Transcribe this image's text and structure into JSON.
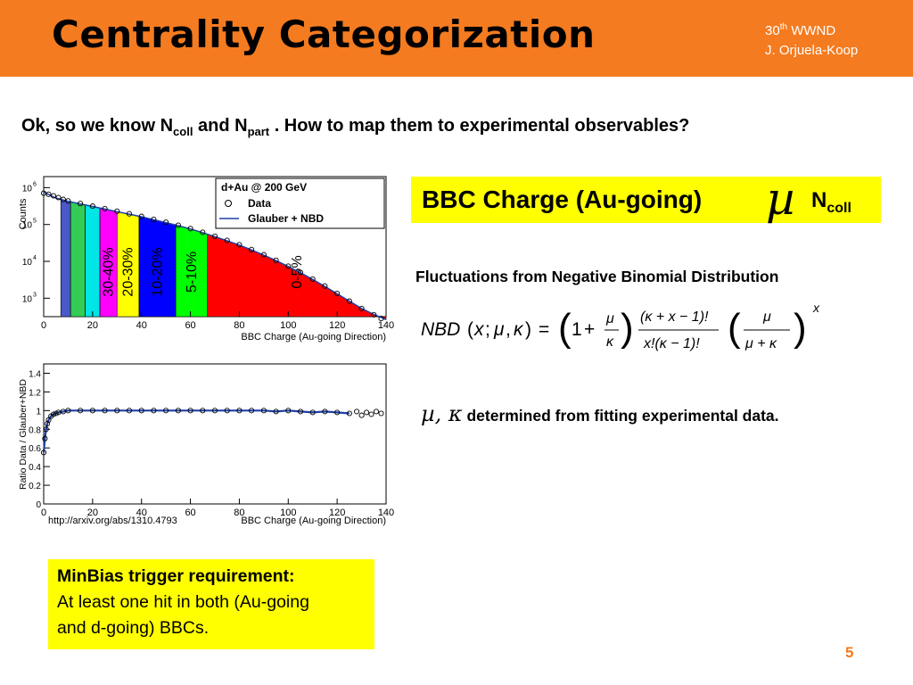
{
  "slide": {
    "title": "Centrality Categorization",
    "header_conf_num": "30",
    "header_conf_sup": "th",
    "header_conf_name": "WWND",
    "header_author": "J. Orjuela-Koop",
    "question_a": "Ok, so we know N",
    "question_sub1": "coll",
    "question_b": " and  N",
    "question_sub2": "part",
    "question_c": " . How to map them to experimental observables?",
    "bbc_label": "BBC Charge (Au-going)",
    "bbc_symbol": "µ",
    "bbc_n": "N",
    "bbc_n_sub": "coll",
    "fluct_text": "Fluctuations from Negative Binomial Distribution",
    "det_symbols": "µ, κ",
    "det_text": " determined from fitting experimental data.",
    "url": "http://arxiv.org/abs/1310.4793",
    "minbias_title": "MinBias trigger requirement:",
    "minbias_line1": "At least one hit in both (Au-going",
    "minbias_line2": "and d-going) BBCs.",
    "page_number": "5"
  },
  "chart_data": [
    {
      "type": "scatter",
      "title": "d+Au @ 200 GeV",
      "xlabel": "BBC Charge (Au-going Direction)",
      "ylabel": "Counts",
      "xlim": [
        0,
        140
      ],
      "ylim_log10": [
        2.5,
        6.3
      ],
      "log_y": true,
      "x_ticks": [
        "0",
        "20",
        "40",
        "60",
        "80",
        "100",
        "120",
        "140"
      ],
      "y_ticks": [
        "10",
        "10",
        "10",
        "10"
      ],
      "y_tick_exps": [
        "3",
        "4",
        "5",
        "6"
      ],
      "legend": [
        "Data",
        "Glauber + NBD"
      ],
      "legend_position": "top-right",
      "centrality_bins": [
        {
          "label": "",
          "x0": 7,
          "x1": 11,
          "color": "#4a58c8"
        },
        {
          "label": "",
          "x0": 11,
          "x1": 17,
          "color": "#33cc55"
        },
        {
          "label": "",
          "x0": 17,
          "x1": 23,
          "color": "#00e5e5"
        },
        {
          "label": "30-40%",
          "x0": 23,
          "x1": 30,
          "color": "#ff00ff"
        },
        {
          "label": "20-30%",
          "x0": 30,
          "x1": 39,
          "color": "#ffff00"
        },
        {
          "label": "10-20%",
          "x0": 39,
          "x1": 54,
          "color": "#0000ff"
        },
        {
          "label": "5-10%",
          "x0": 54,
          "x1": 67,
          "color": "#00ff00"
        },
        {
          "label": "0-5%",
          "x0": 67,
          "x1": 140,
          "color": "#ff0000"
        }
      ],
      "series": [
        {
          "name": "Data",
          "x": [
            0,
            2,
            4,
            6,
            8,
            10,
            15,
            20,
            25,
            30,
            35,
            40,
            45,
            50,
            55,
            60,
            65,
            70,
            75,
            80,
            85,
            90,
            95,
            100,
            105,
            110,
            115,
            120,
            125,
            130,
            135,
            138
          ],
          "log10_y": [
            5.85,
            5.82,
            5.78,
            5.73,
            5.68,
            5.64,
            5.57,
            5.5,
            5.43,
            5.36,
            5.29,
            5.22,
            5.14,
            5.06,
            4.98,
            4.89,
            4.79,
            4.68,
            4.57,
            4.45,
            4.32,
            4.18,
            4.03,
            3.87,
            3.7,
            3.52,
            3.33,
            3.13,
            2.92,
            2.72,
            2.55,
            2.45
          ]
        },
        {
          "name": "Glauber + NBD",
          "x": [
            0,
            5,
            10,
            15,
            20,
            25,
            30,
            35,
            40,
            45,
            50,
            55,
            60,
            65,
            70,
            75,
            80,
            85,
            90,
            95,
            100,
            105,
            110,
            115,
            120,
            125,
            130,
            135,
            140
          ],
          "log10_y": [
            5.88,
            5.72,
            5.63,
            5.56,
            5.49,
            5.42,
            5.35,
            5.28,
            5.21,
            5.13,
            5.05,
            4.97,
            4.88,
            4.78,
            4.67,
            4.56,
            4.44,
            4.31,
            4.17,
            4.02,
            3.86,
            3.69,
            3.51,
            3.32,
            3.12,
            2.92,
            2.72,
            2.56,
            2.42
          ]
        }
      ]
    },
    {
      "type": "scatter",
      "xlabel": "BBC Charge (Au-going Direction)",
      "ylabel": "Ratio Data / Glauber+NBD",
      "xlim": [
        0,
        140
      ],
      "ylim": [
        0,
        1.5
      ],
      "x_ticks": [
        "0",
        "20",
        "40",
        "60",
        "80",
        "100",
        "120",
        "140"
      ],
      "y_ticks": [
        "0",
        "0.2",
        "0.4",
        "0.6",
        "0.8",
        "1",
        "1.2",
        "1.4"
      ],
      "series": [
        {
          "name": "",
          "x": [
            0,
            0.5,
            1,
            1.5,
            2,
            3,
            4,
            5,
            6,
            8,
            10,
            15,
            20,
            25,
            30,
            35,
            40,
            45,
            50,
            55,
            60,
            65,
            70,
            75,
            80,
            85,
            90,
            95,
            100,
            105,
            110,
            115,
            120,
            125,
            128,
            130,
            132,
            134,
            136,
            138
          ],
          "y": [
            0.55,
            0.7,
            0.8,
            0.86,
            0.9,
            0.94,
            0.96,
            0.97,
            0.98,
            0.99,
            1.0,
            1.0,
            1.0,
            1.0,
            1.0,
            1.0,
            1.0,
            1.0,
            1.0,
            1.0,
            1.0,
            1.0,
            1.0,
            1.0,
            1.0,
            1.0,
            1.0,
            0.99,
            1.0,
            0.99,
            0.98,
            0.99,
            0.98,
            0.97,
            0.99,
            0.95,
            0.98,
            0.96,
            0.99,
            0.97
          ]
        }
      ]
    }
  ]
}
